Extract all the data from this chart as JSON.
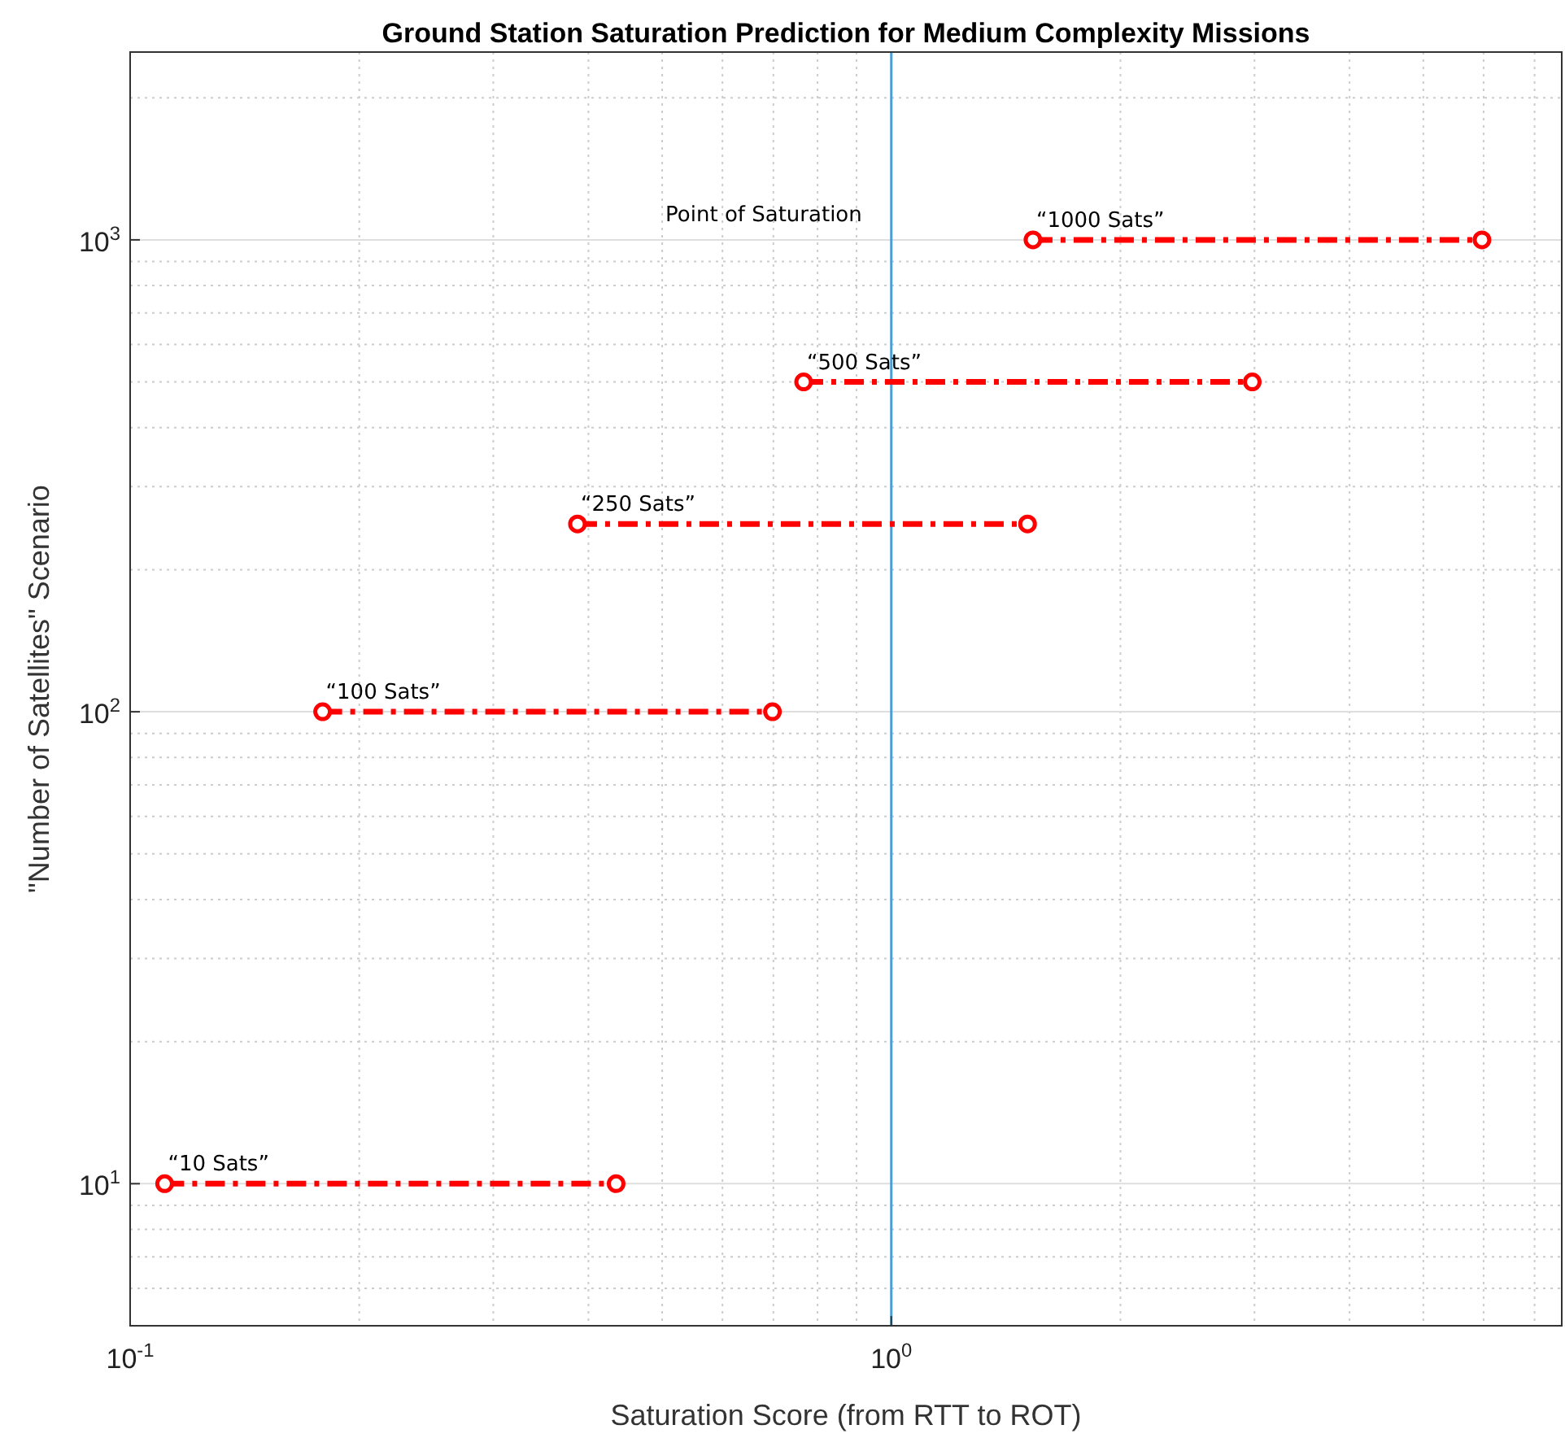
{
  "chart_data": {
    "type": "line",
    "title": "Ground Station Saturation Prediction for Medium Complexity Missions",
    "xlabel": "Saturation Score (from RTT to ROT)",
    "ylabel": "\"Number of Satellites\" Scenario",
    "log": "xy",
    "grid": true,
    "marker": "circle",
    "line_style": "dashed",
    "xlim": [
      0.1,
      7.6
    ],
    "xticks": [
      {
        "value": 0.1,
        "label": "10$^{-1}$"
      },
      {
        "value": 1,
        "label": "10$^{0}$"
      }
    ],
    "ylim": [
      5,
      2500
    ],
    "yticks": [
      {
        "value": 10,
        "label": "10$^{1}$"
      },
      {
        "value": 100,
        "label": "10$^{2}$"
      },
      {
        "value": 1000,
        "label": "10$^{3}$"
      }
    ],
    "series": [
      {
        "color": "#ff0000",
        "x": [
          0.111,
          0.435
        ],
        "values": [
          10,
          10
        ]
      },
      {
        "color": "#ff0000",
        "x": [
          0.179,
          0.698
        ],
        "values": [
          100,
          100
        ]
      },
      {
        "color": "#ff0000",
        "x": [
          0.387,
          1.51
        ],
        "values": [
          250,
          250
        ]
      },
      {
        "color": "#ff0000",
        "x": [
          0.767,
          2.98
        ],
        "values": [
          500,
          500
        ]
      },
      {
        "color": "#ff0000",
        "x": [
          1.535,
          5.97
        ],
        "values": [
          1000,
          1000
        ]
      }
    ],
    "annotations": [
      {
        "text": "“10 Sats”",
        "x": 0.111,
        "y": 10
      },
      {
        "text": "“100 Sats”",
        "x": 0.179,
        "y": 100
      },
      {
        "text": "“250 Sats”",
        "x": 0.387,
        "y": 250
      },
      {
        "text": "“500 Sats”",
        "x": 0.767,
        "y": 500
      },
      {
        "text": "“1000 Sats”",
        "x": 1.535,
        "y": 1000
      }
    ],
    "ref_lines": [
      {
        "axis": "x",
        "value": 1,
        "label": "Point of Saturation",
        "color": "#4a9fd8"
      }
    ]
  }
}
